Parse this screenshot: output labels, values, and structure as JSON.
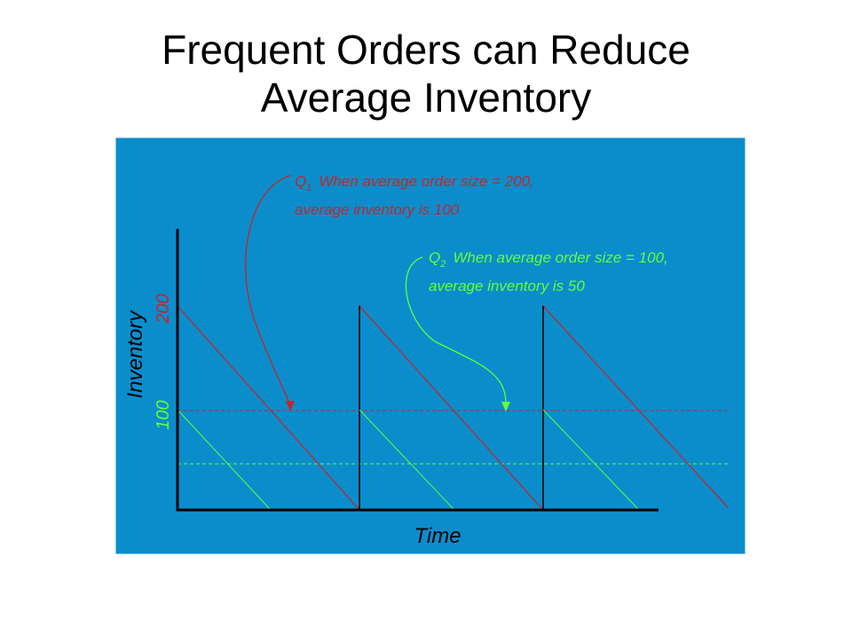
{
  "title": [
    "Frequent Orders can Reduce",
    "Average Inventory"
  ],
  "annotations": [
    {
      "symbol": "Q",
      "subscript": "1",
      "lines": [
        "When average order size = 200,",
        "average inventory is 100"
      ]
    },
    {
      "symbol": "Q",
      "subscript": "2",
      "lines": [
        "When average order size = 100,",
        "average inventory is 50"
      ]
    }
  ],
  "axes": {
    "y_label": "Inventory",
    "x_label": "Time",
    "y_tick_labels": [
      "200",
      "100"
    ]
  }
}
